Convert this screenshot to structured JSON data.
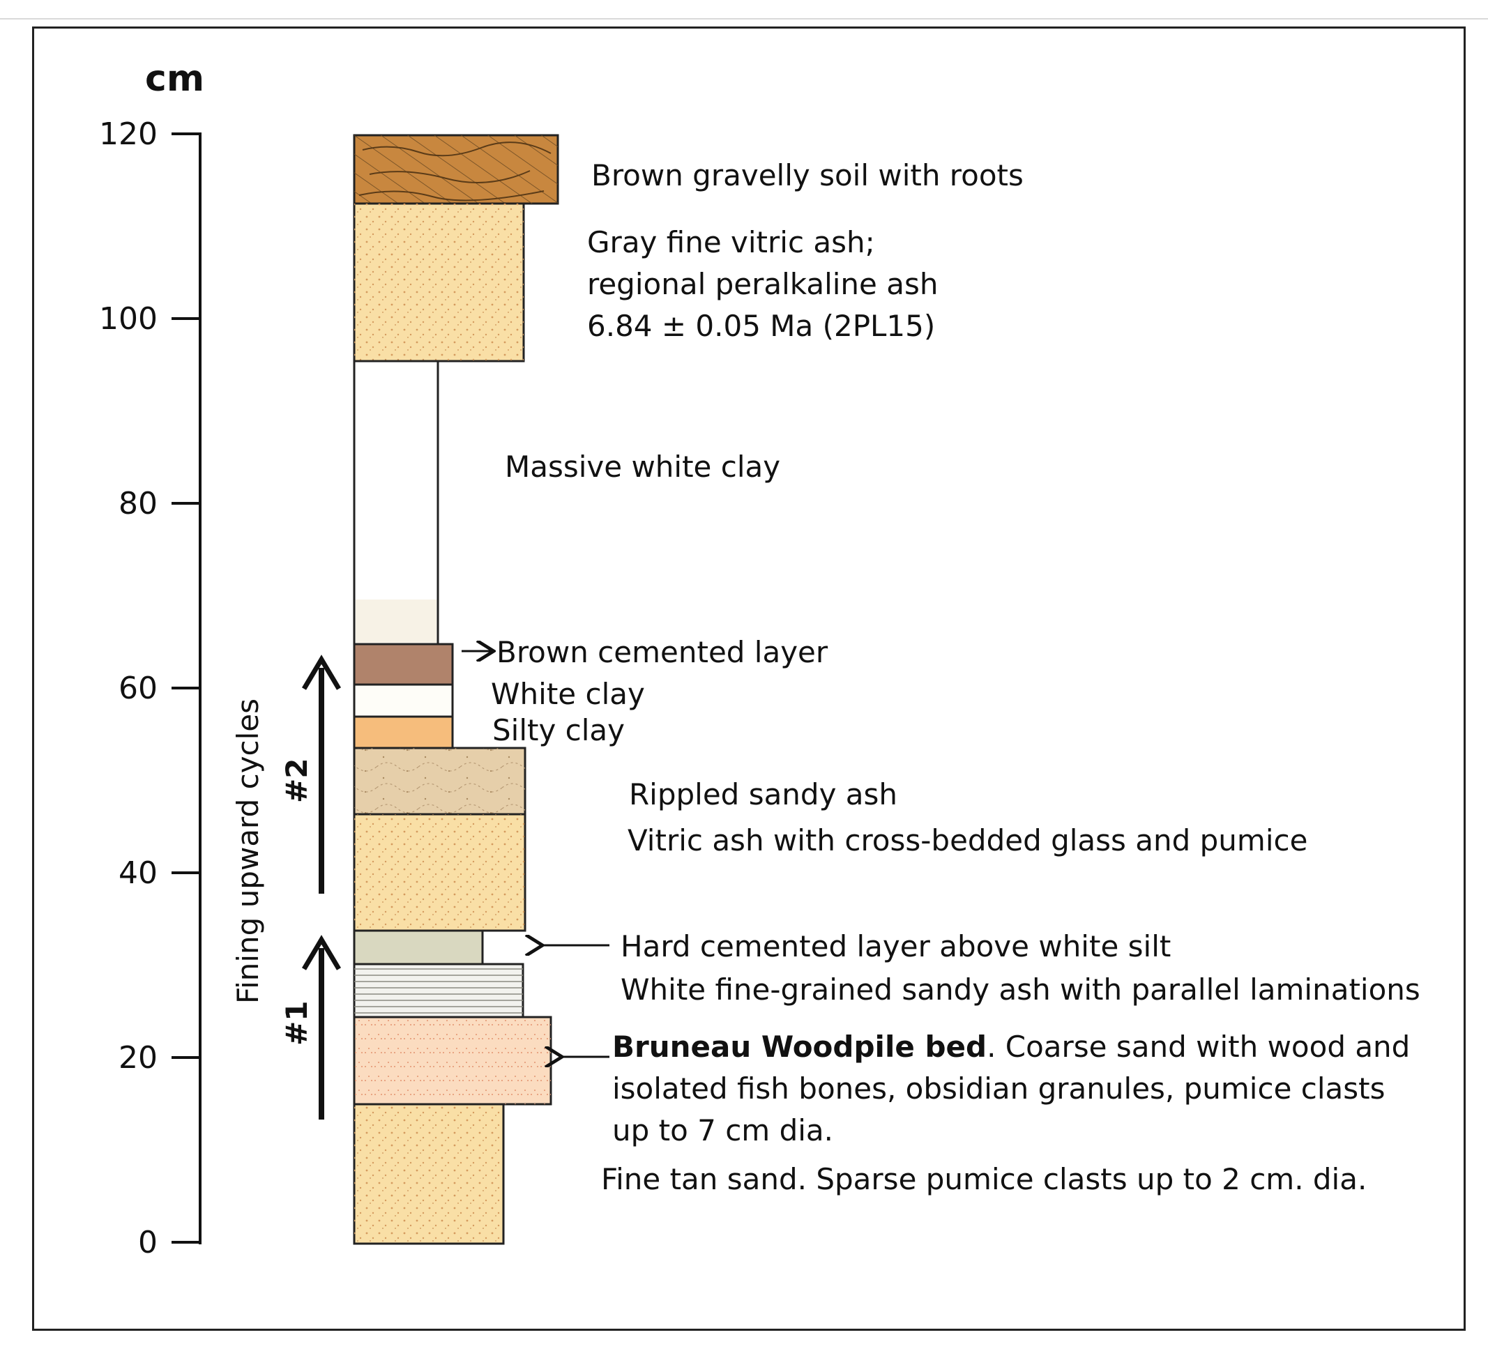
{
  "axis": {
    "unit": "cm",
    "ticks": [
      {
        "value": 120,
        "label": "120"
      },
      {
        "value": 100,
        "label": "100"
      },
      {
        "value": 80,
        "label": "80"
      },
      {
        "value": 60,
        "label": "60"
      },
      {
        "value": 40,
        "label": "40"
      },
      {
        "value": 20,
        "label": "20"
      },
      {
        "value": 0,
        "label": "0"
      }
    ]
  },
  "cycles": {
    "title": "Fining upward cycles",
    "cycle1": "#1",
    "cycle2": "#2"
  },
  "layers": [
    {
      "name": "brown-gravelly-soil",
      "bottom_cm": 112,
      "top_cm": 119.5,
      "color": "#c8873f"
    },
    {
      "name": "gray-fine-vitric-ash",
      "bottom_cm": 94,
      "top_cm": 112,
      "color": "#f9dfa6"
    },
    {
      "name": "massive-white-clay",
      "bottom_cm": 62,
      "top_cm": 94,
      "color": "#ffffff"
    },
    {
      "name": "brown-cemented-layer",
      "bottom_cm": 58,
      "top_cm": 62,
      "color": "#b0836b"
    },
    {
      "name": "white-clay",
      "bottom_cm": 54.5,
      "top_cm": 58,
      "color": "#fefdf8"
    },
    {
      "name": "silty-clay",
      "bottom_cm": 51,
      "top_cm": 54.5,
      "color": "#f6bd7c"
    },
    {
      "name": "rippled-sandy-ash",
      "bottom_cm": 44,
      "top_cm": 51,
      "color": "#e6cfaa"
    },
    {
      "name": "vitric-ash-cross-bedded",
      "bottom_cm": 32,
      "top_cm": 44,
      "color": "#f9dfa6"
    },
    {
      "name": "hard-cemented-layer",
      "bottom_cm": 28.5,
      "top_cm": 32,
      "color": "#d9d8c0"
    },
    {
      "name": "white-laminated-sandy-ash",
      "bottom_cm": 23,
      "top_cm": 28.5,
      "color": "#f2f2ee"
    },
    {
      "name": "bruneau-woodpile-bed",
      "bottom_cm": 14.5,
      "top_cm": 23,
      "color": "#fbdcc0"
    },
    {
      "name": "fine-tan-sand",
      "bottom_cm": 0,
      "top_cm": 14.5,
      "color": "#f9dfa6"
    }
  ],
  "labels": {
    "soil": "Brown gravelly soil with roots",
    "ash1": "Gray fine vitric ash;",
    "ash2": "regional peralkaline ash",
    "ash3": "6.84 ± 0.05 Ma (2PL15)",
    "massive_clay": "Massive white clay",
    "brown_cemented": "Brown cemented layer",
    "white_clay": "White clay",
    "silty_clay": "Silty clay",
    "rippled": "Rippled sandy ash",
    "vitric": "Vitric ash with cross-bedded glass and pumice",
    "hard_cemented": "Hard cemented layer above white silt",
    "white_fine": "White fine-grained sandy ash with parallel laminations",
    "bruneau_bold": "Bruneau Woodpile bed",
    "bruneau_rest": ". Coarse sand with wood and",
    "bruneau2": "isolated fish bones, obsidian granules, pumice clasts",
    "bruneau3": "up to 7 cm dia.",
    "fine_tan": "Fine tan sand. Sparse pumice clasts up to 2 cm. dia."
  }
}
